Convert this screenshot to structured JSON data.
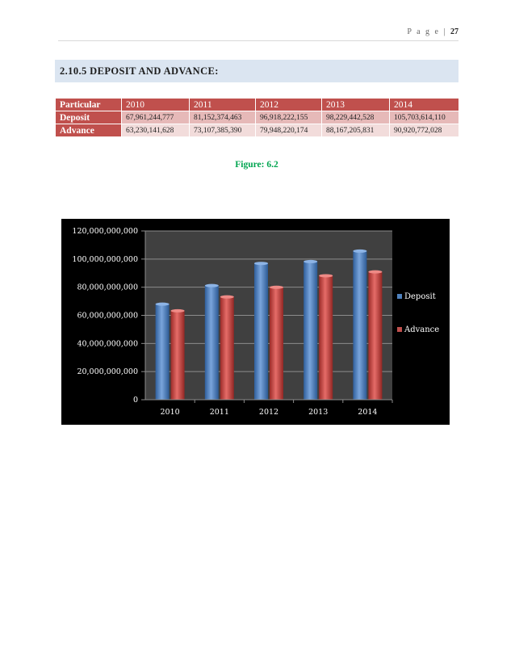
{
  "header": {
    "page_word": "P a g e",
    "separator": "|",
    "page_number": "27"
  },
  "section": {
    "title": "2.10.5 DEPOSIT AND ADVANCE:"
  },
  "table": {
    "columns": [
      "Particular",
      "2010",
      "2011",
      "2012",
      "2013",
      "2014"
    ],
    "rows": [
      {
        "label": "Deposit",
        "values": [
          "67,961,244,777",
          "81,152,374,463",
          "96,918,222,155",
          "98,229,442,528",
          "105,703,614,110"
        ]
      },
      {
        "label": "Advance",
        "values": [
          "63,230,141,628",
          "73,107,385,390",
          "79,948,220,174",
          "88,167,205,831",
          "90,920,772,028"
        ]
      }
    ]
  },
  "figure": {
    "caption": "Figure: 6.2"
  },
  "chart_data": {
    "type": "bar",
    "categories": [
      "2010",
      "2011",
      "2012",
      "2013",
      "2014"
    ],
    "series": [
      {
        "name": "Deposit",
        "values": [
          67961244777,
          81152374463,
          96918222155,
          98229442528,
          105703614110
        ],
        "color": "#4f81bd"
      },
      {
        "name": "Advance",
        "values": [
          63230141628,
          73107385390,
          79948220174,
          88167205831,
          90920772028
        ],
        "color": "#c0504d"
      }
    ],
    "yticks": [
      "0",
      "20,000,000,000",
      "40,000,000,000",
      "60,000,000,000",
      "80,000,000,000",
      "100,000,000,000",
      "120,000,000,000"
    ],
    "ylim": [
      0,
      120000000000
    ],
    "grid": true,
    "legend": "right",
    "colors": {
      "background": "#000000",
      "plot_area": "#404040",
      "gridline": "#8c8c8c",
      "text": "#ffffff"
    }
  }
}
